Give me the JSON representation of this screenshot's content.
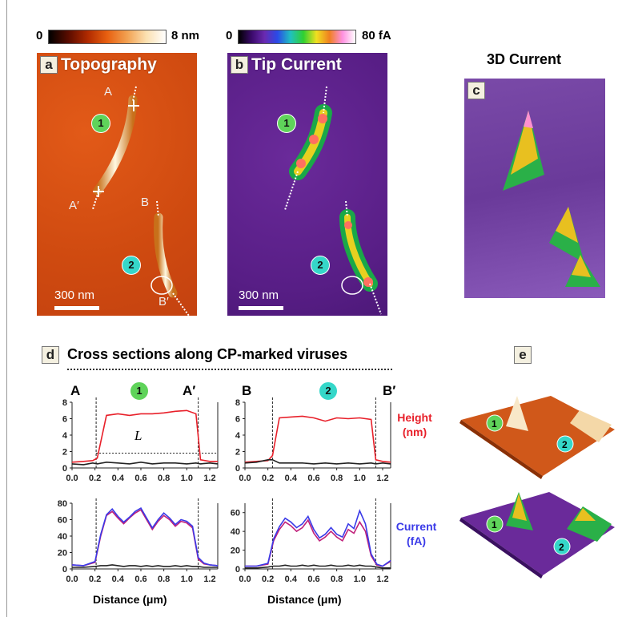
{
  "colorbars": {
    "topography": {
      "min": "0",
      "max": "8 nm"
    },
    "current": {
      "min": "0",
      "max": "80 fA"
    }
  },
  "panels": {
    "a": {
      "tag": "a",
      "title": "Topography",
      "point_A": "A",
      "point_A_prime": "A′",
      "point_B": "B",
      "point_B_prime": "B′",
      "scale": "300 nm"
    },
    "b": {
      "tag": "b",
      "title": "Tip Current",
      "scale": "300 nm"
    },
    "c": {
      "tag": "c",
      "title": "3D Current"
    },
    "d": {
      "tag": "d",
      "title": "Cross sections along CP-marked viruses"
    },
    "e": {
      "tag": "e"
    }
  },
  "badges": {
    "one": "1",
    "two": "2"
  },
  "profile_labels": {
    "left_start": "A",
    "left_end": "A′",
    "right_start": "B",
    "right_end": "B′",
    "length": "L",
    "height_line1": "Height",
    "height_line2": "(nm)",
    "current_line1": "Current",
    "current_line2": "(fA)",
    "xlabel": "Distance (μm)"
  },
  "colors": {
    "height": "#e8202a",
    "current": "#3a3ae8",
    "current_overlay": "#c0207a",
    "background": "#222222"
  },
  "chart_data": [
    {
      "type": "line",
      "panel": "d-height-1",
      "x": [
        0.0,
        0.1,
        0.18,
        0.22,
        0.3,
        0.4,
        0.5,
        0.6,
        0.7,
        0.8,
        0.9,
        1.0,
        1.08,
        1.12,
        1.2,
        1.27
      ],
      "series": [
        {
          "values": [
            0.7,
            0.8,
            0.9,
            1.2,
            6.4,
            6.6,
            6.4,
            6.6,
            6.6,
            6.7,
            6.9,
            7.0,
            6.6,
            1.0,
            0.8,
            0.8
          ]
        },
        {
          "values": [
            0.5,
            0.4,
            0.6,
            0.5,
            0.7,
            0.6,
            0.5,
            0.7,
            0.5,
            0.6,
            0.6,
            0.5,
            0.6,
            0.5,
            0.6,
            0.5
          ]
        }
      ],
      "xlim": [
        0.0,
        1.27
      ],
      "ylim": [
        0,
        8
      ],
      "yticks": [
        0,
        2,
        4,
        6,
        8
      ],
      "xticks": [
        0.0,
        0.2,
        0.4,
        0.6,
        0.8,
        1.0,
        1.2
      ],
      "markers": [
        0.21,
        1.1
      ],
      "L_level": 1.8
    },
    {
      "type": "line",
      "panel": "d-height-2",
      "x": [
        0.0,
        0.1,
        0.2,
        0.24,
        0.3,
        0.4,
        0.5,
        0.6,
        0.7,
        0.8,
        0.9,
        1.0,
        1.1,
        1.14,
        1.2,
        1.27
      ],
      "series": [
        {
          "values": [
            0.7,
            0.8,
            0.9,
            1.5,
            6.1,
            6.2,
            6.3,
            6.1,
            5.7,
            6.1,
            6.0,
            6.1,
            5.9,
            1.0,
            0.8,
            0.7
          ]
        },
        {
          "values": [
            0.6,
            0.7,
            1.0,
            1.0,
            0.6,
            0.6,
            0.6,
            0.5,
            0.6,
            0.5,
            0.6,
            0.5,
            0.6,
            0.5,
            0.6,
            0.5
          ]
        }
      ],
      "xlim": [
        0.0,
        1.27
      ],
      "ylim": [
        0,
        8
      ],
      "yticks": [
        0,
        2,
        4,
        6,
        8
      ],
      "xticks": [
        0.0,
        0.2,
        0.4,
        0.6,
        0.8,
        1.0,
        1.2
      ],
      "markers": [
        0.24,
        1.14
      ]
    },
    {
      "type": "line",
      "panel": "d-current-1",
      "x": [
        0.0,
        0.1,
        0.2,
        0.25,
        0.3,
        0.35,
        0.4,
        0.45,
        0.5,
        0.55,
        0.6,
        0.65,
        0.7,
        0.75,
        0.8,
        0.85,
        0.9,
        0.95,
        1.0,
        1.05,
        1.1,
        1.15,
        1.2,
        1.27
      ],
      "series": [
        {
          "values": [
            5,
            4,
            8,
            40,
            65,
            70,
            62,
            55,
            62,
            68,
            72,
            60,
            48,
            58,
            65,
            60,
            52,
            58,
            56,
            50,
            12,
            6,
            5,
            4
          ]
        },
        {
          "values": [
            5,
            4,
            9,
            42,
            66,
            73,
            64,
            57,
            63,
            70,
            74,
            62,
            50,
            60,
            68,
            62,
            54,
            60,
            58,
            52,
            14,
            7,
            5,
            4
          ]
        },
        {
          "values": [
            2,
            2,
            3,
            4,
            4,
            5,
            4,
            3,
            4,
            4,
            3,
            4,
            3,
            4,
            3,
            3,
            4,
            3,
            4,
            3,
            3,
            2,
            2,
            2
          ]
        }
      ],
      "xlim": [
        0.0,
        1.27
      ],
      "ylim": [
        0,
        80
      ],
      "yticks": [
        0,
        20,
        40,
        60,
        80
      ],
      "xticks": [
        0.0,
        0.2,
        0.4,
        0.6,
        0.8,
        1.0,
        1.2
      ],
      "markers": [
        0.21,
        1.1
      ]
    },
    {
      "type": "line",
      "panel": "d-current-2",
      "x": [
        0.0,
        0.1,
        0.2,
        0.25,
        0.3,
        0.35,
        0.4,
        0.45,
        0.5,
        0.55,
        0.6,
        0.65,
        0.7,
        0.75,
        0.8,
        0.85,
        0.9,
        0.95,
        1.0,
        1.05,
        1.1,
        1.15,
        1.2,
        1.27
      ],
      "series": [
        {
          "values": [
            3,
            3,
            5,
            30,
            42,
            50,
            46,
            40,
            44,
            52,
            38,
            30,
            34,
            40,
            34,
            30,
            42,
            38,
            50,
            40,
            14,
            4,
            3,
            8
          ]
        },
        {
          "values": [
            3,
            3,
            6,
            32,
            45,
            54,
            50,
            44,
            48,
            56,
            42,
            33,
            37,
            44,
            37,
            34,
            48,
            43,
            62,
            48,
            16,
            5,
            3,
            9
          ]
        },
        {
          "values": [
            1,
            1,
            2,
            3,
            3,
            4,
            3,
            3,
            4,
            3,
            4,
            3,
            3,
            4,
            3,
            3,
            4,
            3,
            4,
            3,
            3,
            2,
            1,
            1
          ]
        }
      ],
      "xlim": [
        0.0,
        1.27
      ],
      "ylim": [
        0,
        70
      ],
      "yticks": [
        0,
        20,
        40,
        60
      ],
      "xticks": [
        0.0,
        0.2,
        0.4,
        0.6,
        0.8,
        1.0,
        1.2
      ],
      "markers": [
        0.24,
        1.14
      ]
    }
  ]
}
